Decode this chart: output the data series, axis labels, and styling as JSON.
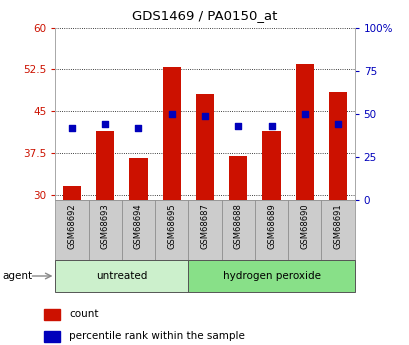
{
  "title": "GDS1469 / PA0150_at",
  "samples": [
    "GSM68692",
    "GSM68693",
    "GSM68694",
    "GSM68695",
    "GSM68687",
    "GSM68688",
    "GSM68689",
    "GSM68690",
    "GSM68691"
  ],
  "counts": [
    31.5,
    41.5,
    36.5,
    53.0,
    48.0,
    37.0,
    41.5,
    53.5,
    48.5
  ],
  "percentiles": [
    42,
    44,
    42,
    50,
    49,
    43,
    43,
    50,
    44
  ],
  "groups": [
    {
      "label": "untreated",
      "start": 0,
      "end": 4,
      "color": "#ccf0cc"
    },
    {
      "label": "hydrogen peroxide",
      "start": 4,
      "end": 9,
      "color": "#88e088"
    }
  ],
  "group_label": "agent",
  "ylim_left": [
    29,
    60
  ],
  "ylim_right": [
    0,
    100
  ],
  "yticks_left": [
    30,
    37.5,
    45,
    52.5,
    60
  ],
  "yticks_right": [
    0,
    25,
    50,
    75,
    100
  ],
  "ytick_labels_left": [
    "30",
    "37.5",
    "45",
    "52.5",
    "60"
  ],
  "ytick_labels_right": [
    "0",
    "25",
    "50",
    "75",
    "100%"
  ],
  "bar_color": "#cc1100",
  "dot_color": "#0000bb",
  "bar_width": 0.55,
  "bar_bottom": 29,
  "plot_bg": "#ffffff",
  "tick_color_left": "#cc1100",
  "tick_color_right": "#0000bb",
  "legend_count_label": "count",
  "legend_pct_label": "percentile rank within the sample",
  "sample_box_color": "#cccccc",
  "sample_box_edge": "#888888"
}
